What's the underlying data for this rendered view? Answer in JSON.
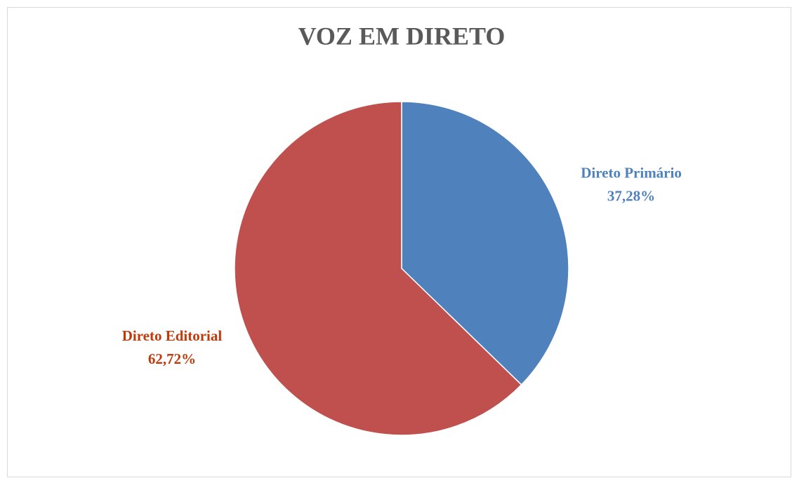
{
  "chart_data": {
    "type": "pie",
    "title": "VOZ EM DIRETO",
    "categories": [
      "Direto Primário",
      "Direto Editorial"
    ],
    "values": [
      37.28,
      62.72
    ],
    "value_labels": [
      "37,28%",
      "62,72%"
    ],
    "colors": [
      "#4f81bd",
      "#c0504d"
    ],
    "label_colors": [
      "#4f81bd",
      "#c0390b"
    ]
  }
}
